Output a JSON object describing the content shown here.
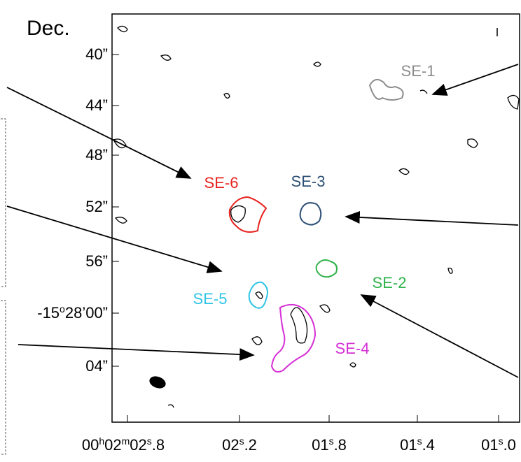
{
  "figure": {
    "y_label": "Dec.",
    "y_ticks": [
      {
        "parts": [
          "40”"
        ]
      },
      {
        "parts": [
          "44”"
        ]
      },
      {
        "parts": [
          "48”"
        ]
      },
      {
        "parts": [
          "52”"
        ]
      },
      {
        "parts": [
          "56”"
        ]
      },
      {
        "parts": [
          "-15",
          "o",
          "28’00”"
        ]
      },
      {
        "parts": [
          "04”"
        ]
      }
    ],
    "x_ticks": [
      {
        "parts": [
          "00",
          "h",
          "02",
          "m",
          "02",
          "s",
          ".8"
        ]
      },
      {
        "parts": [
          "02",
          "s",
          ".2"
        ]
      },
      {
        "parts": [
          "01",
          "s",
          ".8"
        ]
      },
      {
        "parts": [
          "01",
          "s",
          ".4"
        ]
      },
      {
        "parts": [
          "01",
          "s",
          ".0"
        ]
      }
    ],
    "sources": [
      {
        "label": "SE-1",
        "color": "#8c8c8c"
      },
      {
        "label": "SE-3",
        "color": "#2e5077"
      },
      {
        "label": "SE-6",
        "color": "#e8231f"
      },
      {
        "label": "SE-2",
        "color": "#2fb34a"
      },
      {
        "label": "SE-5",
        "color": "#2fc4e6"
      },
      {
        "label": "SE-4",
        "color": "#d62fd6"
      }
    ]
  }
}
